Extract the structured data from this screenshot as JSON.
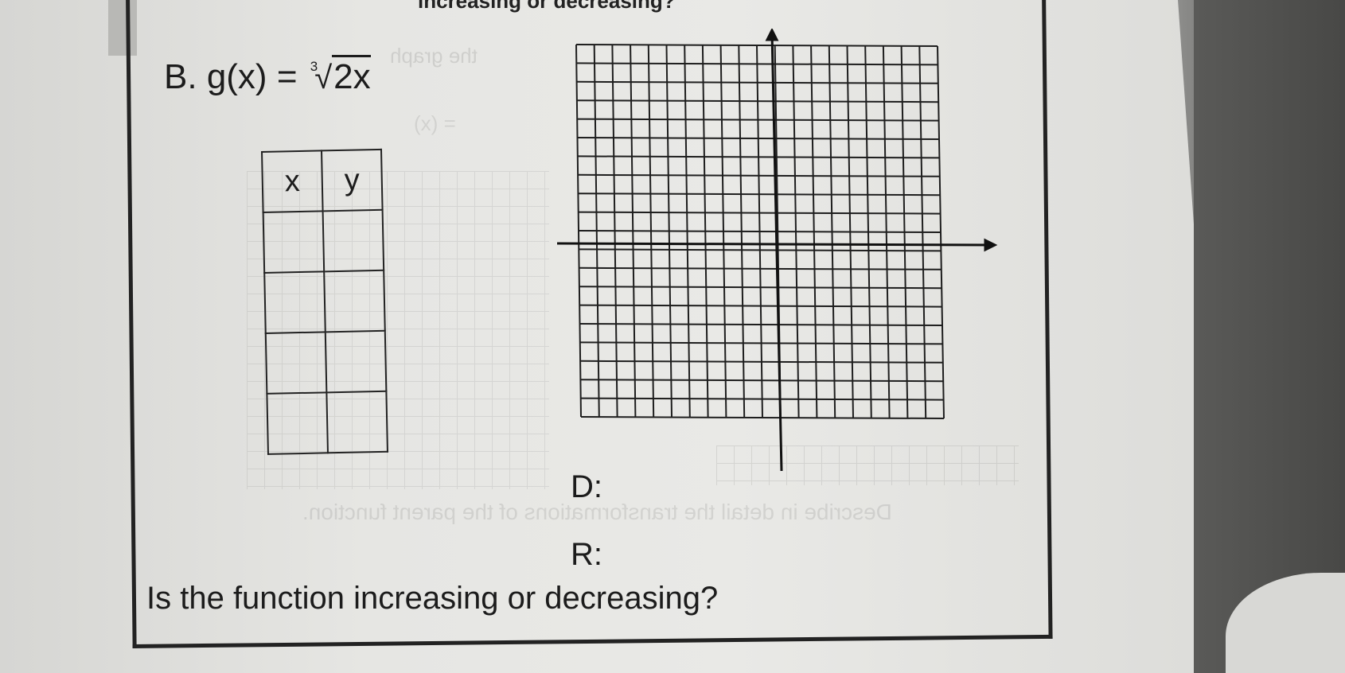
{
  "header": {
    "cut_off_text": "increasing or decreasing?"
  },
  "problem": {
    "label": "B.",
    "function_lhs": "g(x) =",
    "root_index": "3",
    "radicand": "2x"
  },
  "table": {
    "headers": [
      "x",
      "y"
    ],
    "rows": [
      [
        "",
        ""
      ],
      [
        "",
        ""
      ],
      [
        "",
        ""
      ],
      [
        "",
        ""
      ]
    ]
  },
  "graph": {
    "grid_cells": 20
  },
  "labels": {
    "domain": "D:",
    "range": "R:"
  },
  "question": "Is the function increasing or decreasing?"
}
